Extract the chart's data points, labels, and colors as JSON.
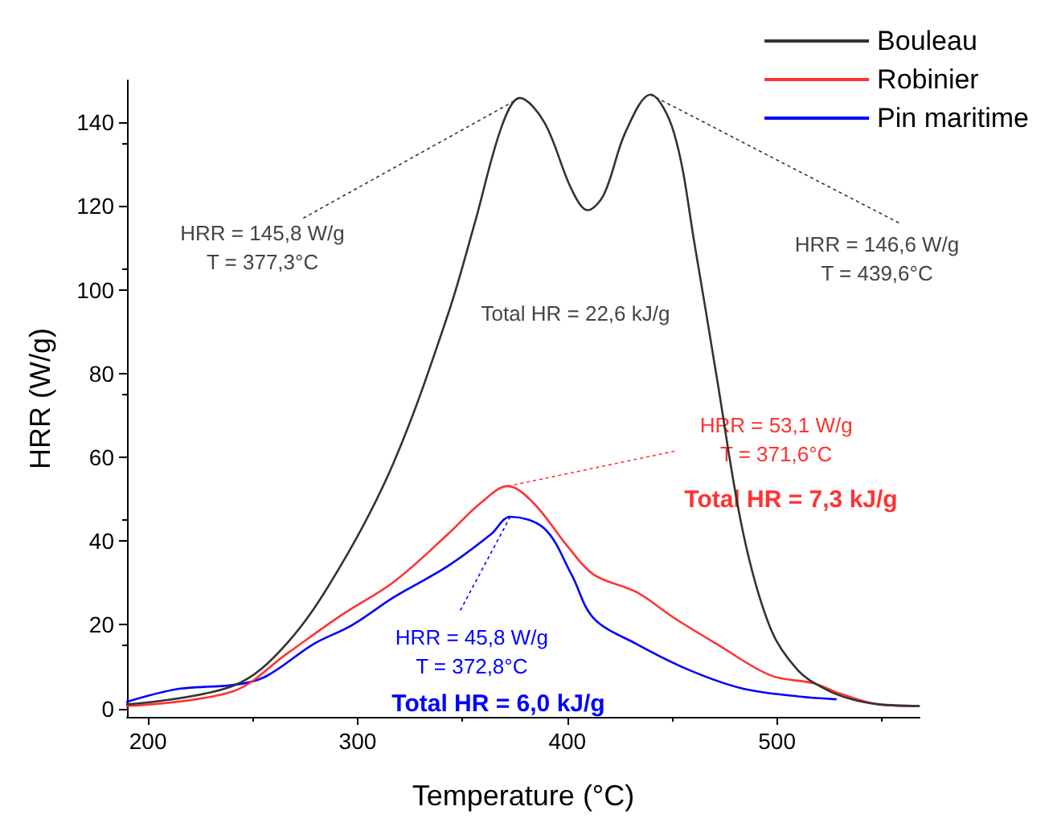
{
  "chart_data": {
    "type": "line",
    "xlabel": "Temperature (°C)",
    "ylabel": "HRR (W/g)",
    "xlim": [
      190,
      568
    ],
    "xticks": [
      200,
      300,
      400,
      500
    ],
    "ylim": [
      -2,
      150
    ],
    "yticks": [
      0,
      20,
      40,
      60,
      80,
      100,
      120,
      140
    ],
    "grid": false,
    "legend": "top right",
    "marker": "none",
    "line_style": "solid",
    "series": [
      {
        "name": "Bouleau",
        "color": "#333333",
        "x": [
          190,
          240.5,
          266,
          291.8,
          317.4,
          343,
          355.9,
          368.7,
          377.3,
          389,
          402,
          409.7,
          417.4,
          427.7,
          439.6,
          450.8,
          461,
          471.3,
          484,
          497,
          510,
          522.8,
          535.6,
          548.5,
          567.7
        ],
        "values": [
          1.0,
          5.4,
          15.4,
          34,
          59,
          94,
          116,
          139,
          145.8,
          140,
          124,
          119,
          122.7,
          137.6,
          146.6,
          137.6,
          110,
          79,
          41.6,
          19,
          9.1,
          4.7,
          2.2,
          1.0,
          0.6
        ]
      },
      {
        "name": "Robinier",
        "color": "#ff3333",
        "x": [
          190,
          240.5,
          266,
          292,
          317.4,
          343,
          358.5,
          371.6,
          384,
          399.7,
          412.5,
          433,
          451,
          471.3,
          497,
          517.7,
          530.5,
          548.5,
          567.7
        ],
        "values": [
          0.6,
          4.1,
          13,
          22.2,
          30.3,
          41.6,
          49,
          53.1,
          49,
          39,
          32,
          27.8,
          21.6,
          15.4,
          7.9,
          6.0,
          3.5,
          1.0,
          0.6
        ]
      },
      {
        "name": "Pin maritime",
        "color": "#0000ff",
        "x": [
          190,
          214.9,
          240.5,
          256,
          279,
          297,
          317.4,
          343,
          363.6,
          372.8,
          389,
          402,
          412.5,
          433,
          458.5,
          484,
          510,
          528
        ],
        "values": [
          1.6,
          4.7,
          5.6,
          7.6,
          15.4,
          19.8,
          26.6,
          34,
          41.6,
          45.8,
          43,
          32,
          21.6,
          15.4,
          9.1,
          4.7,
          2.9,
          2.2
        ]
      }
    ],
    "annotations": [
      {
        "text": "HRR = 145,8 W/g\nT = 377,3°C",
        "x": 377.3,
        "y": 145.8
      },
      {
        "text": "HRR = 146,6 W/g\nT = 439,6°C",
        "x": 439.6,
        "y": 146.6
      },
      {
        "text": "HRR = 53,1 W/g\nT = 371,6°C",
        "x": 371.6,
        "y": 53.1
      },
      {
        "text": "HRR = 45,8 W/g\nT = 372,8°C",
        "x": 372.8,
        "y": 45.8
      },
      "Total HR = 22,6 kJ/g",
      "Total HR = 7,3 kJ/g",
      "Total HR = 6,0 kJ/g"
    ]
  }
}
